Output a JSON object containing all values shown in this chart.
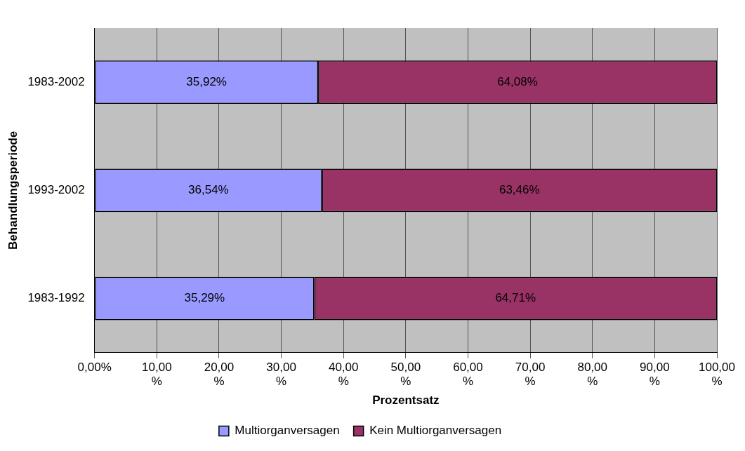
{
  "chart_data": {
    "type": "bar",
    "orientation": "horizontal",
    "stacked": true,
    "categories": [
      "1983-2002",
      "1993-2002",
      "1983-1992"
    ],
    "series": [
      {
        "name": "Multiorganversagen",
        "color": "#9999ff",
        "values": [
          35.92,
          36.54,
          35.29
        ],
        "value_labels": [
          "35,92%",
          "36,54%",
          "35,29%"
        ]
      },
      {
        "name": "Kein Multiorganversagen",
        "color": "#993366",
        "values": [
          64.08,
          63.46,
          64.71
        ],
        "value_labels": [
          "64,08%",
          "63,46%",
          "64,71%"
        ]
      }
    ],
    "xlim": [
      0,
      100
    ],
    "xticks": [
      {
        "value": 0,
        "label": "0,00%"
      },
      {
        "value": 10,
        "label": "10,00%"
      },
      {
        "value": 20,
        "label": "20,00%"
      },
      {
        "value": 30,
        "label": "30,00%"
      },
      {
        "value": 40,
        "label": "40,00%"
      },
      {
        "value": 50,
        "label": "50,00%"
      },
      {
        "value": 60,
        "label": "60,00%"
      },
      {
        "value": 70,
        "label": "70,00%"
      },
      {
        "value": 80,
        "label": "80,00%"
      },
      {
        "value": 90,
        "label": "90,00%"
      },
      {
        "value": 100,
        "label": "100,00%"
      }
    ],
    "xlabel": "Prozentsatz",
    "ylabel": "Behandlungsperiode",
    "grid": "x",
    "legend": "bottom"
  }
}
